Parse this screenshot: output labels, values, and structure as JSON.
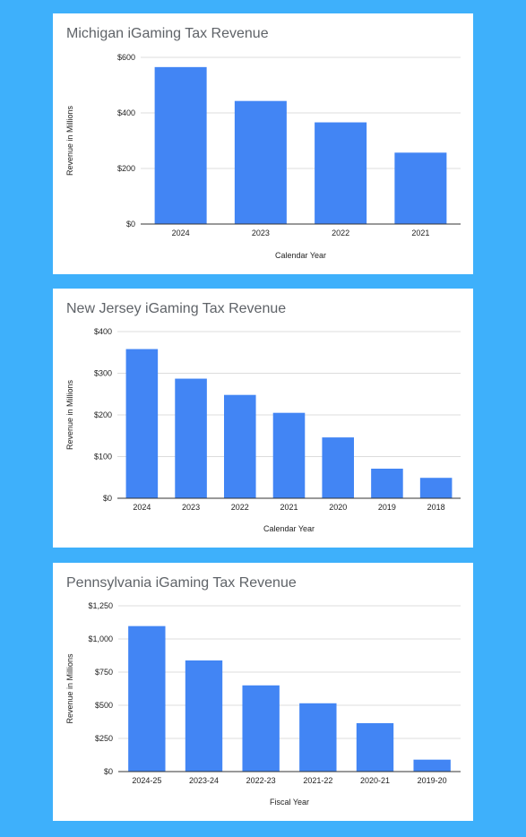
{
  "chart_data": [
    {
      "type": "bar",
      "title": "Michigan iGaming Tax Revenue",
      "xlabel": "Calendar Year",
      "ylabel": "Revenue in Millions",
      "categories": [
        "2024",
        "2023",
        "2022",
        "2021"
      ],
      "values": [
        565,
        443,
        366,
        257
      ],
      "ylim": [
        0,
        600
      ],
      "yticks": [
        0,
        200,
        400,
        600
      ],
      "ytick_labels": [
        "$0",
        "$200",
        "$400",
        "$600"
      ],
      "grid": true,
      "bar_color": "#4285f4"
    },
    {
      "type": "bar",
      "title": "New Jersey iGaming Tax Revenue",
      "xlabel": "Calendar Year",
      "ylabel": "Revenue in Millions",
      "categories": [
        "2024",
        "2023",
        "2022",
        "2021",
        "2020",
        "2019",
        "2018"
      ],
      "values": [
        358,
        287,
        248,
        205,
        146,
        71,
        49
      ],
      "ylim": [
        0,
        400
      ],
      "yticks": [
        0,
        100,
        200,
        300,
        400
      ],
      "ytick_labels": [
        "$0",
        "$100",
        "$200",
        "$300",
        "$400"
      ],
      "grid": true,
      "bar_color": "#4285f4"
    },
    {
      "type": "bar",
      "title": "Pennsylvania iGaming Tax Revenue",
      "xlabel": "Fiscal Year",
      "ylabel": "Revenue in Millions",
      "categories": [
        "2024-25",
        "2023-24",
        "2022-23",
        "2021-22",
        "2020-21",
        "2019-20"
      ],
      "values": [
        1097,
        838,
        650,
        515,
        365,
        90
      ],
      "ylim": [
        0,
        1250
      ],
      "yticks": [
        0,
        250,
        500,
        750,
        1000,
        1250
      ],
      "ytick_labels": [
        "$0",
        "$250",
        "$500",
        "$750",
        "$1,000",
        "$1,250"
      ],
      "grid": true,
      "bar_color": "#4285f4"
    }
  ]
}
